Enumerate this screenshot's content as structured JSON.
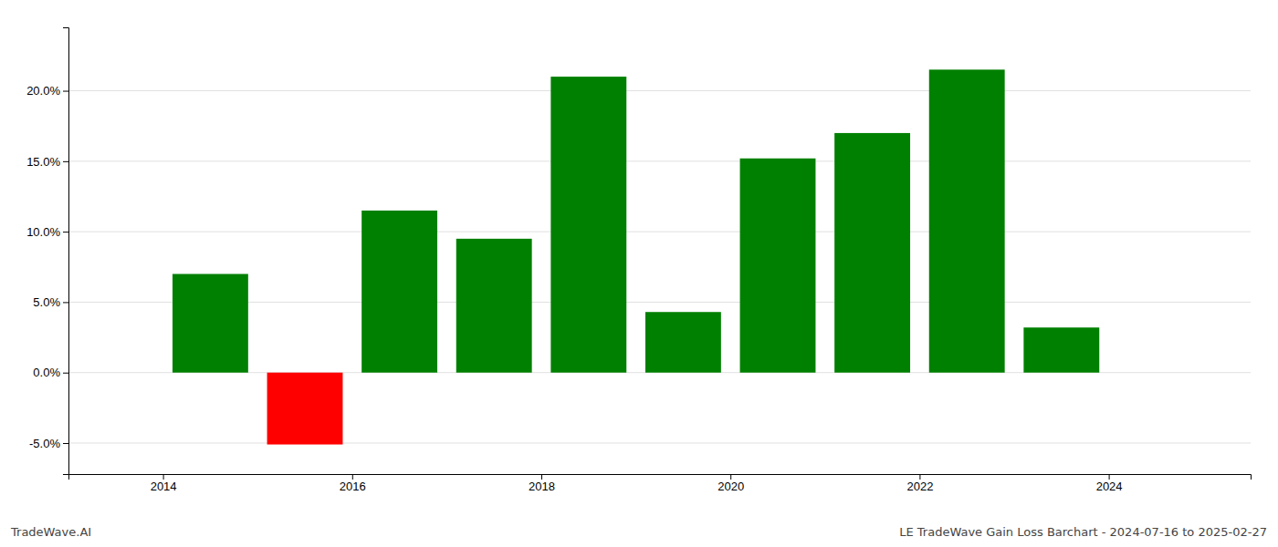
{
  "chart_data": {
    "type": "bar",
    "x": [
      2014.5,
      2015.5,
      2016.5,
      2017.5,
      2018.5,
      2019.5,
      2020.5,
      2021.5,
      2022.5,
      2023.5
    ],
    "values": [
      0.07,
      -0.051,
      0.115,
      0.095,
      0.21,
      0.043,
      0.152,
      0.17,
      0.215,
      0.032
    ],
    "colors": [
      "#008000",
      "#ff0000",
      "#008000",
      "#008000",
      "#008000",
      "#008000",
      "#008000",
      "#008000",
      "#008000",
      "#008000"
    ],
    "xlim": [
      2013.0,
      2025.5
    ],
    "xticks": [
      2014,
      2016,
      2018,
      2020,
      2022,
      2024
    ],
    "ylim": [
      -0.072,
      0.245
    ],
    "yticks": [
      {
        "value": -0.05,
        "label": "-5.0%"
      },
      {
        "value": 0.0,
        "label": "0.0%"
      },
      {
        "value": 0.05,
        "label": "5.0%"
      },
      {
        "value": 0.1,
        "label": "10.0%"
      },
      {
        "value": 0.15,
        "label": "15.0%"
      },
      {
        "value": 0.2,
        "label": "20.0%"
      }
    ],
    "grid": true,
    "annotations": [
      "TradeWave.AI",
      "LE TradeWave Gain Loss Barchart - 2024-07-16 to 2025-02-27"
    ]
  }
}
